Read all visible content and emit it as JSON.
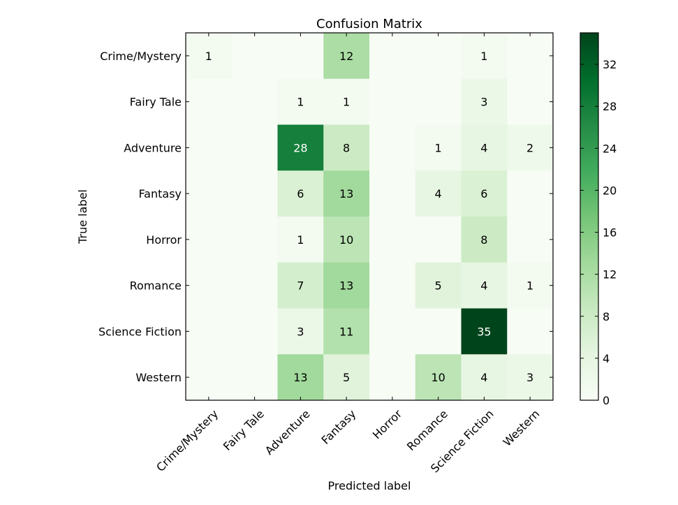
{
  "chart_data": {
    "type": "heatmap",
    "title": "Confusion Matrix",
    "xlabel": "Predicted label",
    "ylabel": "True label",
    "x_categories": [
      "Crime/Mystery",
      "Fairy Tale",
      "Adventure",
      "Fantasy",
      "Horror",
      "Romance",
      "Science Fiction",
      "Western"
    ],
    "y_categories": [
      "Crime/Mystery",
      "Fairy Tale",
      "Adventure",
      "Fantasy",
      "Horror",
      "Romance",
      "Science Fiction",
      "Western"
    ],
    "values": [
      [
        1,
        0,
        0,
        12,
        0,
        0,
        1,
        0
      ],
      [
        0,
        0,
        1,
        1,
        0,
        0,
        3,
        0
      ],
      [
        0,
        0,
        28,
        8,
        0,
        1,
        4,
        2
      ],
      [
        0,
        0,
        6,
        13,
        0,
        4,
        6,
        0
      ],
      [
        0,
        0,
        1,
        10,
        0,
        0,
        8,
        0
      ],
      [
        0,
        0,
        7,
        13,
        0,
        5,
        4,
        1
      ],
      [
        0,
        0,
        3,
        11,
        0,
        0,
        35,
        0
      ],
      [
        0,
        0,
        13,
        5,
        0,
        10,
        4,
        3
      ]
    ],
    "colorbar": {
      "min": 0,
      "max": 35,
      "ticks": [
        0,
        4,
        8,
        12,
        16,
        20,
        24,
        28,
        32
      ]
    },
    "colormap": "Greens",
    "colormap_stops": [
      "#f7fcf5",
      "#e5f5e0",
      "#c7e9c0",
      "#a1d99b",
      "#74c476",
      "#41ab5d",
      "#238b45",
      "#006d2c",
      "#00441b"
    ]
  }
}
